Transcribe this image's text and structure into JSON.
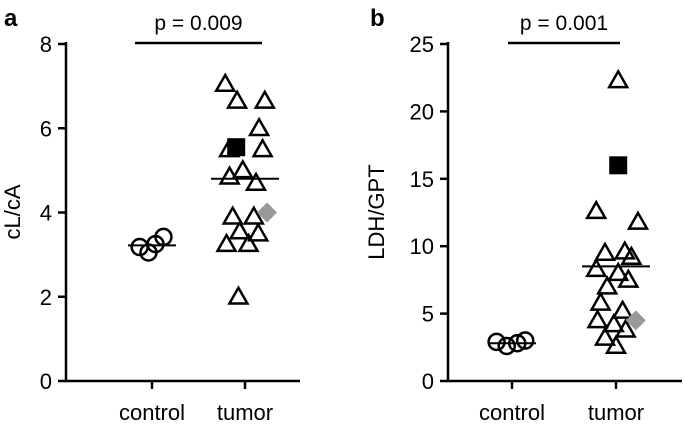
{
  "chart_data": [
    {
      "type": "scatter",
      "panel_label": "a",
      "ylabel": "cL/cA",
      "ylim": [
        0,
        8
      ],
      "yticks": [
        "0",
        "2",
        "4",
        "6",
        "8"
      ],
      "categories": [
        "control",
        "tumor"
      ],
      "significance": "p = 0.009",
      "groups": [
        {
          "name": "control",
          "marker": "circle",
          "mean": 3.22,
          "points": [
            {
              "x_offset": -0.28,
              "y": 3.18
            },
            {
              "x_offset": -0.08,
              "y": 3.05
            },
            {
              "x_offset": 0.08,
              "y": 3.25
            },
            {
              "x_offset": 0.26,
              "y": 3.42
            }
          ]
        },
        {
          "name": "tumor",
          "marker": "triangle",
          "mean": 4.8,
          "points": [
            {
              "x_offset": -0.45,
              "y": 7.05
            },
            {
              "x_offset": -0.18,
              "y": 6.65
            },
            {
              "x_offset": 0.45,
              "y": 6.65
            },
            {
              "x_offset": 0.32,
              "y": 6.0
            },
            {
              "x_offset": -0.36,
              "y": 5.5
            },
            {
              "x_offset": 0.4,
              "y": 5.5
            },
            {
              "x_offset": -0.05,
              "y": 5.0
            },
            {
              "x_offset": -0.35,
              "y": 4.85
            },
            {
              "x_offset": 0.25,
              "y": 4.7
            },
            {
              "x_offset": -0.28,
              "y": 3.9
            },
            {
              "x_offset": 0.2,
              "y": 3.9
            },
            {
              "x_offset": -0.12,
              "y": 3.55
            },
            {
              "x_offset": 0.3,
              "y": 3.5
            },
            {
              "x_offset": -0.42,
              "y": 3.25
            },
            {
              "x_offset": 0.08,
              "y": 3.25
            },
            {
              "x_offset": -0.15,
              "y": 2.0
            }
          ],
          "special": [
            {
              "marker": "square",
              "color": "#000000",
              "x_offset": -0.2,
              "y": 5.55
            },
            {
              "marker": "diamond",
              "color": "#999999",
              "x_offset": 0.5,
              "y": 4.0
            }
          ]
        }
      ]
    },
    {
      "type": "scatter",
      "panel_label": "b",
      "ylabel": "LDH/GPT",
      "ylim": [
        0,
        25
      ],
      "yticks": [
        "0",
        "5",
        "10",
        "15",
        "20",
        "25"
      ],
      "categories": [
        "control",
        "tumor"
      ],
      "significance": "p = 0.001",
      "groups": [
        {
          "name": "control",
          "marker": "circle",
          "mean": 2.8,
          "points": [
            {
              "x_offset": -0.35,
              "y": 2.9
            },
            {
              "x_offset": -0.12,
              "y": 2.6
            },
            {
              "x_offset": 0.12,
              "y": 2.8
            },
            {
              "x_offset": 0.3,
              "y": 3.0
            }
          ]
        },
        {
          "name": "tumor",
          "marker": "triangle",
          "mean": 8.5,
          "points": [
            {
              "x_offset": 0.05,
              "y": 22.3
            },
            {
              "x_offset": -0.45,
              "y": 12.6
            },
            {
              "x_offset": 0.5,
              "y": 11.8
            },
            {
              "x_offset": -0.25,
              "y": 9.5
            },
            {
              "x_offset": 0.2,
              "y": 9.6
            },
            {
              "x_offset": 0.35,
              "y": 9.2
            },
            {
              "x_offset": -0.45,
              "y": 8.3
            },
            {
              "x_offset": 0.05,
              "y": 8.0
            },
            {
              "x_offset": 0.28,
              "y": 7.5
            },
            {
              "x_offset": -0.2,
              "y": 7.0
            },
            {
              "x_offset": -0.35,
              "y": 5.8
            },
            {
              "x_offset": 0.15,
              "y": 5.2
            },
            {
              "x_offset": -0.42,
              "y": 4.5
            },
            {
              "x_offset": -0.05,
              "y": 4.2
            },
            {
              "x_offset": 0.22,
              "y": 3.8
            },
            {
              "x_offset": -0.25,
              "y": 3.2
            },
            {
              "x_offset": 0.0,
              "y": 2.6
            }
          ],
          "special": [
            {
              "marker": "square",
              "color": "#000000",
              "x_offset": 0.05,
              "y": 16.0
            },
            {
              "marker": "diamond",
              "color": "#999999",
              "x_offset": 0.45,
              "y": 4.5
            }
          ]
        }
      ]
    }
  ]
}
